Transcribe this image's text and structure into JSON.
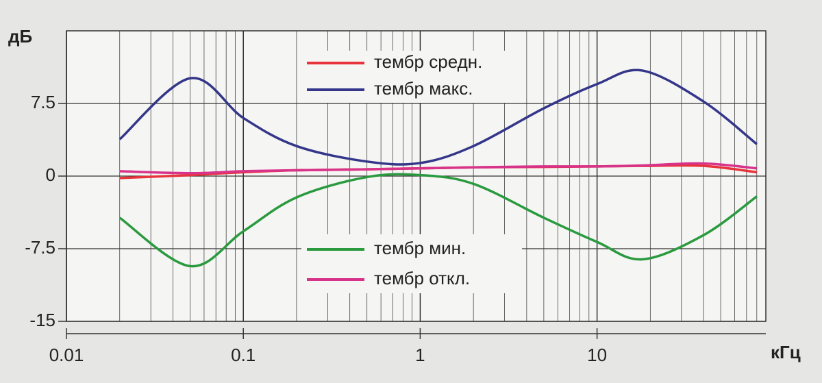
{
  "chart_data": {
    "type": "line",
    "y_label": "дБ",
    "x_label": "кГц",
    "x": [
      0.02,
      0.05,
      0.1,
      0.2,
      0.5,
      1,
      2,
      5,
      10,
      18,
      40,
      80
    ],
    "series": [
      {
        "name": "тембр средн.",
        "color": "#e8333c",
        "values": [
          -0.2,
          0.1,
          0.4,
          0.6,
          0.7,
          0.8,
          0.9,
          0.95,
          1,
          1.05,
          1.05,
          0.4
        ]
      },
      {
        "name": "тембр макс.",
        "color": "#34368a",
        "values": [
          3.8,
          10.1,
          6,
          3.1,
          1.5,
          1.35,
          3.1,
          7,
          9.5,
          10.9,
          7.7,
          3.3
        ]
      },
      {
        "name": "тембр мин.",
        "color": "#2a9a3f",
        "values": [
          -4.3,
          -9.3,
          -5.7,
          -2.2,
          -0.1,
          0.1,
          -0.8,
          -4.3,
          -6.8,
          -8.6,
          -6.1,
          -2.1
        ]
      },
      {
        "name": "тембр откл.",
        "color": "#d8338a",
        "values": [
          0.5,
          0.3,
          0.5,
          0.6,
          0.7,
          0.8,
          0.9,
          1,
          1,
          1.1,
          1.3,
          0.8
        ]
      }
    ],
    "xlim": [
      0.01,
      90
    ],
    "xticks": [
      0.01,
      0.1,
      1,
      10
    ],
    "x_log": true,
    "minor_grid": true,
    "ylim": [
      -15,
      15
    ],
    "yticks": [
      -15,
      -7.5,
      0,
      7.5
    ],
    "grid": true
  }
}
